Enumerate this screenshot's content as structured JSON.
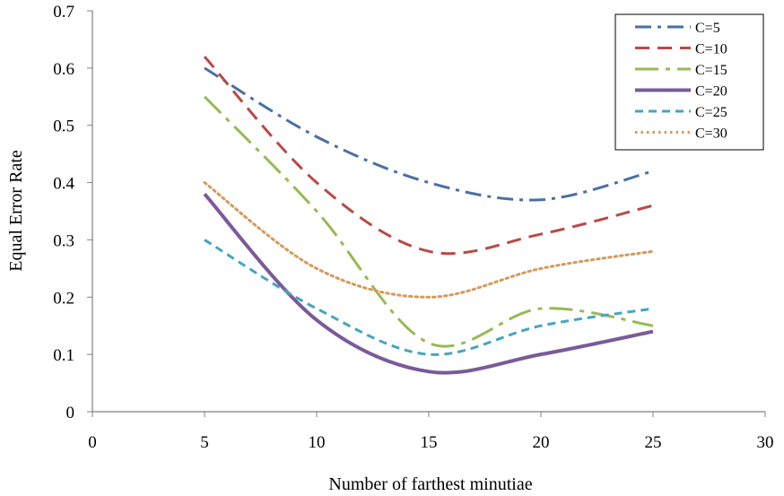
{
  "chart_data": {
    "type": "line",
    "title": "",
    "xlabel": "Number of farthest minutiae",
    "ylabel": "Equal Error Rate",
    "xlim": [
      0,
      30
    ],
    "ylim": [
      0,
      0.7
    ],
    "xticks": [
      0,
      5,
      10,
      15,
      20,
      25,
      30
    ],
    "yticks": [
      0,
      0.1,
      0.2,
      0.3,
      0.4,
      0.5,
      0.6,
      0.7
    ],
    "grid": false,
    "legend_position": "top-right",
    "x": [
      5,
      10,
      15,
      20,
      25
    ],
    "series": [
      {
        "name": "C=5",
        "values": [
          0.6,
          0.48,
          0.4,
          0.37,
          0.42
        ],
        "color": "#4a6fa5",
        "dash": "dashdot"
      },
      {
        "name": "C=10",
        "values": [
          0.62,
          0.4,
          0.28,
          0.31,
          0.36
        ],
        "color": "#b84a47",
        "dash": "dashed"
      },
      {
        "name": "C=15",
        "values": [
          0.55,
          0.35,
          0.12,
          0.18,
          0.15
        ],
        "color": "#98b954",
        "dash": "longdashdot"
      },
      {
        "name": "C=20",
        "values": [
          0.38,
          0.16,
          0.07,
          0.1,
          0.14
        ],
        "color": "#7a5a9a",
        "dash": "solid"
      },
      {
        "name": "C=25",
        "values": [
          0.3,
          0.18,
          0.1,
          0.15,
          0.18
        ],
        "color": "#46a5c0",
        "dash": "shortdash"
      },
      {
        "name": "C=30",
        "values": [
          0.4,
          0.25,
          0.2,
          0.25,
          0.28
        ],
        "color": "#d49a5a",
        "dash": "dotted"
      }
    ]
  }
}
